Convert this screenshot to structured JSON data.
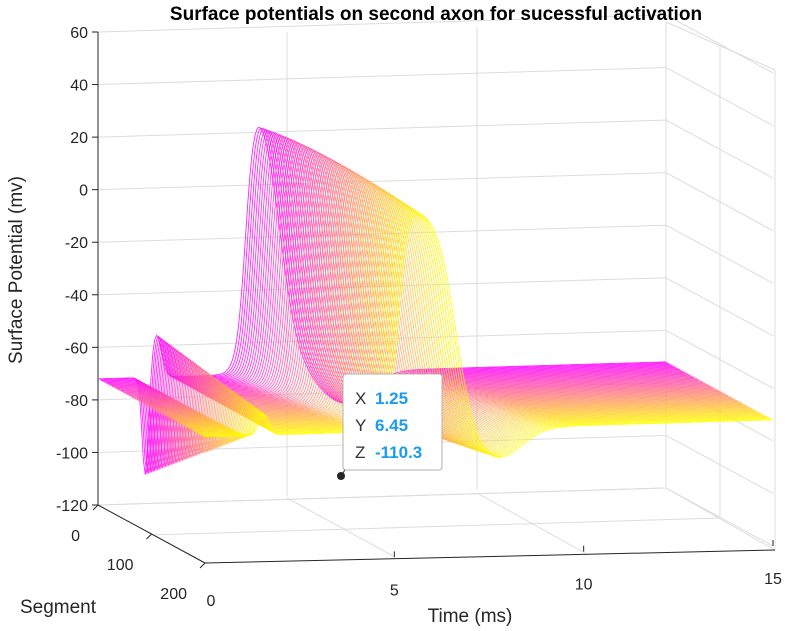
{
  "chart_data": {
    "type": "surface",
    "title": "Surface potentials on second axon for sucessful activation",
    "xlabel": "Time (ms)",
    "ylabel": "Segment",
    "zlabel": "Surface Potential (mv)",
    "x_ticks": [
      "5",
      "10",
      "15"
    ],
    "y_ticks": [
      "0",
      "100",
      "200"
    ],
    "z_ticks": [
      "60",
      "40",
      "20",
      "0",
      "-20",
      "-40",
      "-60",
      "-80",
      "-100",
      "-120"
    ],
    "x_origin_label": "0",
    "xlim": [
      0,
      15
    ],
    "ylim": [
      0,
      200
    ],
    "zlim": [
      -120,
      60
    ],
    "grid": true,
    "colormap": [
      "#ff00ff",
      "#ffff00"
    ],
    "datatip": {
      "x_key": "X",
      "x_value": "1.25",
      "y_key": "Y",
      "y_value": "6.45",
      "z_key": "Z",
      "z_value": "-110.3",
      "value_color": "#1a9bf0"
    }
  }
}
